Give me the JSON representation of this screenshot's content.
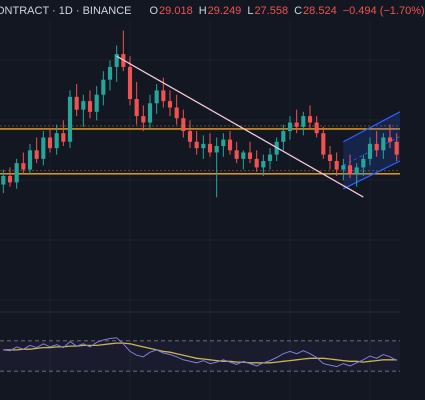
{
  "header": {
    "symbol": "ONTRACT · 1D · BINANCE",
    "open_label": "O",
    "open": "29.018",
    "high_label": "H",
    "high": "29.249",
    "low_label": "L",
    "low": "27.558",
    "close_label": "C",
    "close": "28.524",
    "change": "−0.494 (−1.70%)"
  },
  "colors": {
    "background": "#131722",
    "up": "#26a69a",
    "down": "#ef5350",
    "level_line": "#f5a623",
    "trendline": "#f3c6d8",
    "channel": "#2962ff",
    "rsi_line": "#7e7fd6",
    "rsi_ma": "#c9b458"
  },
  "chart_data": [
    {
      "type": "candlestick",
      "ylim": [
        20,
        33
      ],
      "candles": [
        [
          25.4,
          26.1,
          25.0,
          25.8
        ],
        [
          25.8,
          26.2,
          25.3,
          25.5
        ],
        [
          25.5,
          26.6,
          25.2,
          26.4
        ],
        [
          26.4,
          26.9,
          25.9,
          26.1
        ],
        [
          26.1,
          27.3,
          25.9,
          27.0
        ],
        [
          27.0,
          27.6,
          26.4,
          26.6
        ],
        [
          26.6,
          27.9,
          26.3,
          27.6
        ],
        [
          27.6,
          28.0,
          26.9,
          27.1
        ],
        [
          27.1,
          28.2,
          26.8,
          27.8
        ],
        [
          27.8,
          28.4,
          27.2,
          27.4
        ],
        [
          27.4,
          29.8,
          27.1,
          29.5
        ],
        [
          29.5,
          30.1,
          28.6,
          28.9
        ],
        [
          28.9,
          29.6,
          28.1,
          29.3
        ],
        [
          29.3,
          29.8,
          28.5,
          28.8
        ],
        [
          28.8,
          30.0,
          28.4,
          29.6
        ],
        [
          29.6,
          30.7,
          29.1,
          30.3
        ],
        [
          30.3,
          31.2,
          29.8,
          30.9
        ],
        [
          30.9,
          31.9,
          30.2,
          31.5
        ],
        [
          31.5,
          32.6,
          30.7,
          30.9
        ],
        [
          30.9,
          31.4,
          29.1,
          29.4
        ],
        [
          29.4,
          30.2,
          28.2,
          28.6
        ],
        [
          28.6,
          29.1,
          27.9,
          28.3
        ],
        [
          28.3,
          29.6,
          28.0,
          29.2
        ],
        [
          29.2,
          30.1,
          28.7,
          29.8
        ],
        [
          29.8,
          30.4,
          29.0,
          29.3
        ],
        [
          29.3,
          29.8,
          28.6,
          29.0
        ],
        [
          29.0,
          29.6,
          28.2,
          28.5
        ],
        [
          28.5,
          28.9,
          27.6,
          27.9
        ],
        [
          27.9,
          28.4,
          27.1,
          27.4
        ],
        [
          27.4,
          27.9,
          26.8,
          27.1
        ],
        [
          27.1,
          27.7,
          26.6,
          27.3
        ],
        [
          27.3,
          27.8,
          26.7,
          26.9
        ],
        [
          26.9,
          27.6,
          24.8,
          27.2
        ],
        [
          27.2,
          27.8,
          26.7,
          27.5
        ],
        [
          27.5,
          27.9,
          26.8,
          27.0
        ],
        [
          27.0,
          27.4,
          26.4,
          26.6
        ],
        [
          26.6,
          27.0,
          26.1,
          26.9
        ],
        [
          26.9,
          27.4,
          26.4,
          26.6
        ],
        [
          26.6,
          27.0,
          26.0,
          26.2
        ],
        [
          26.2,
          26.8,
          25.8,
          26.5
        ],
        [
          26.5,
          27.1,
          26.1,
          26.8
        ],
        [
          26.8,
          27.6,
          26.5,
          27.4
        ],
        [
          27.4,
          28.2,
          27.0,
          27.9
        ],
        [
          27.9,
          28.6,
          27.5,
          28.3
        ],
        [
          28.3,
          28.9,
          27.8,
          28.1
        ],
        [
          28.1,
          28.8,
          27.7,
          28.6
        ],
        [
          28.6,
          29.1,
          28.0,
          28.3
        ],
        [
          28.3,
          28.6,
          27.6,
          27.8
        ],
        [
          27.8,
          28.1,
          26.6,
          26.8
        ],
        [
          26.8,
          27.2,
          26.1,
          26.5
        ],
        [
          26.5,
          26.9,
          25.8,
          26.1
        ],
        [
          26.1,
          26.6,
          25.6,
          26.3
        ],
        [
          26.3,
          26.8,
          25.7,
          25.9
        ],
        [
          25.9,
          26.4,
          25.3,
          26.2
        ],
        [
          26.2,
          26.8,
          25.8,
          26.6
        ],
        [
          26.6,
          27.6,
          26.3,
          27.3
        ],
        [
          27.3,
          27.9,
          26.7,
          27.0
        ],
        [
          27.0,
          27.8,
          26.6,
          27.6
        ],
        [
          27.6,
          28.2,
          27.1,
          27.4
        ],
        [
          27.4,
          27.8,
          26.5,
          26.8
        ]
      ],
      "levels": [
        28.0,
        25.9
      ],
      "trendline": [
        [
          31.4,
          25.6
        ],
        [
          25.0,
          25.2
        ]
      ]
    },
    {
      "type": "line",
      "ylim": [
        0,
        100
      ],
      "guides": [
        70,
        30
      ],
      "rsi": [
        58,
        57,
        62,
        59,
        64,
        61,
        66,
        62,
        65,
        61,
        69,
        63,
        66,
        62,
        68,
        71,
        73,
        74,
        66,
        56,
        51,
        49,
        55,
        58,
        54,
        52,
        49,
        45,
        43,
        41,
        44,
        40,
        42,
        45,
        42,
        39,
        43,
        40,
        37,
        41,
        44,
        48,
        53,
        56,
        53,
        57,
        53,
        48,
        40,
        38,
        36,
        40,
        37,
        41,
        45,
        50,
        47,
        52,
        49,
        44
      ],
      "rsi_ma": [
        58,
        58,
        58,
        59,
        59,
        60,
        61,
        61,
        62,
        62,
        63,
        63,
        64,
        64,
        64,
        65,
        66,
        67,
        67,
        66,
        64,
        62,
        60,
        58,
        56,
        55,
        53,
        51,
        49,
        47,
        46,
        45,
        44,
        43,
        43,
        42,
        42,
        41,
        41,
        41,
        41,
        42,
        43,
        44,
        45,
        46,
        47,
        47,
        47,
        46,
        45,
        44,
        43,
        43,
        42,
        43,
        44,
        45,
        45,
        45
      ]
    }
  ]
}
